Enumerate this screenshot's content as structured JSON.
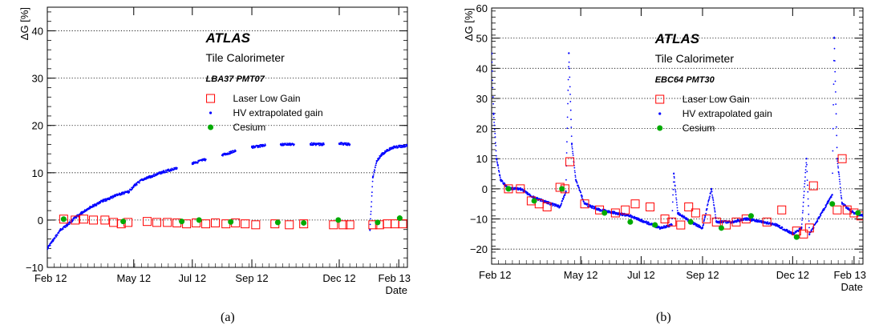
{
  "chart_data": [
    {
      "type": "scatter",
      "panel_caption": "(a)",
      "ylabel": "ΔG [%]",
      "xlabel": "Date",
      "ylim": [
        -10,
        45
      ],
      "yticks": [
        -10,
        0,
        10,
        20,
        30,
        40
      ],
      "ytick_labels": [
        "−10",
        "0",
        "10",
        "20",
        "30",
        "40"
      ],
      "xticks": [
        {
          "label": "Feb 12",
          "date": "2012-02-01"
        },
        {
          "label": "May 12",
          "date": "2012-05-01"
        },
        {
          "label": "Jul 12",
          "date": "2012-07-01"
        },
        {
          "label": "Sep 12",
          "date": "2012-09-01"
        },
        {
          "label": "Dec 12",
          "date": "2012-12-01"
        },
        {
          "label": "Feb 13",
          "date": "2013-02-01"
        }
      ],
      "xlim": [
        "2012-02-01",
        "2013-02-10"
      ],
      "grid": "horizontal dotted",
      "annotations": {
        "experiment": "ATLAS",
        "detector": "Tile Calorimeter",
        "channel": "LBA37 PMT07"
      },
      "legend": {
        "placement": "upper-middle",
        "entries": [
          {
            "label": "Laser Low Gain",
            "marker": "open-square",
            "color": "#ff0000"
          },
          {
            "label": "HV extrapolated gain",
            "marker": "dot",
            "color": "#0000ff"
          },
          {
            "label": "Cesium",
            "marker": "filled-circle",
            "color": "#00aa00"
          }
        ]
      },
      "series": [
        {
          "name": "HV extrapolated gain",
          "points": [
            [
              "2012-02-01",
              -6
            ],
            [
              "2012-02-08",
              -4
            ],
            [
              "2012-02-15",
              -2
            ],
            [
              "2012-02-22",
              -1
            ],
            [
              "2012-03-01",
              0.5
            ],
            [
              "2012-03-08",
              1.5
            ],
            [
              "2012-03-15",
              2.5
            ],
            [
              "2012-03-22",
              3.2
            ],
            [
              "2012-03-29",
              4
            ],
            [
              "2012-04-05",
              4.5
            ],
            [
              "2012-04-12",
              5.2
            ],
            [
              "2012-04-19",
              5.6
            ],
            [
              "2012-04-26",
              6
            ],
            [
              "2012-05-01",
              7.2
            ],
            [
              "2012-05-10",
              8.5
            ],
            [
              "2012-05-20",
              9.3
            ],
            [
              "2012-06-01",
              10.2
            ],
            [
              "2012-06-15",
              11
            ],
            [
              "2012-07-01",
              12
            ],
            [
              "2012-07-15",
              12.8
            ],
            [
              "2012-08-01",
              13.7
            ],
            [
              "2012-08-15",
              14.6
            ],
            [
              "2012-09-01",
              15.4
            ],
            [
              "2012-09-15",
              15.8
            ],
            [
              "2012-10-01",
              16
            ],
            [
              "2012-10-15",
              16
            ],
            [
              "2012-11-01",
              16.1
            ],
            [
              "2012-11-15",
              16
            ],
            [
              "2012-12-01",
              16.2
            ],
            [
              "2012-12-12",
              16
            ],
            [
              "2013-01-02",
              -2
            ],
            [
              "2013-01-05",
              9
            ],
            [
              "2013-01-09",
              12.5
            ],
            [
              "2013-01-14",
              13.8
            ],
            [
              "2013-01-20",
              14.8
            ],
            [
              "2013-01-27",
              15.4
            ],
            [
              "2013-02-05",
              15.6
            ],
            [
              "2013-02-10",
              15.8
            ]
          ]
        },
        {
          "name": "Laser Low Gain",
          "points": [
            [
              "2012-02-18",
              0.2
            ],
            [
              "2012-03-01",
              0
            ],
            [
              "2012-03-10",
              0.2
            ],
            [
              "2012-03-20",
              0
            ],
            [
              "2012-04-01",
              0
            ],
            [
              "2012-04-10",
              -0.5
            ],
            [
              "2012-04-18",
              -0.8
            ],
            [
              "2012-04-25",
              -0.5
            ],
            [
              "2012-05-15",
              -0.3
            ],
            [
              "2012-05-25",
              -0.5
            ],
            [
              "2012-06-05",
              -0.5
            ],
            [
              "2012-06-15",
              -0.6
            ],
            [
              "2012-06-25",
              -0.8
            ],
            [
              "2012-07-05",
              -0.6
            ],
            [
              "2012-07-15",
              -0.8
            ],
            [
              "2012-07-25",
              -0.6
            ],
            [
              "2012-08-05",
              -0.8
            ],
            [
              "2012-08-15",
              -0.6
            ],
            [
              "2012-08-25",
              -0.8
            ],
            [
              "2012-09-05",
              -1
            ],
            [
              "2012-09-25",
              -0.8
            ],
            [
              "2012-10-10",
              -1
            ],
            [
              "2012-10-25",
              -0.8
            ],
            [
              "2012-11-25",
              -1
            ],
            [
              "2012-12-05",
              -1
            ],
            [
              "2012-12-12",
              -1
            ],
            [
              "2013-01-05",
              -1
            ],
            [
              "2013-01-12",
              -1
            ],
            [
              "2013-01-20",
              -0.8
            ],
            [
              "2013-01-28",
              -0.8
            ],
            [
              "2013-02-05",
              -0.8
            ]
          ]
        },
        {
          "name": "Cesium",
          "points": [
            [
              "2012-02-18",
              0.2
            ],
            [
              "2012-04-20",
              -0.3
            ],
            [
              "2012-06-20",
              -0.3
            ],
            [
              "2012-07-08",
              0
            ],
            [
              "2012-08-10",
              -0.4
            ],
            [
              "2012-09-28",
              -0.5
            ],
            [
              "2012-10-25",
              -0.6
            ],
            [
              "2012-11-30",
              0
            ],
            [
              "2013-01-10",
              -0.5
            ],
            [
              "2013-02-02",
              0.4
            ]
          ]
        }
      ]
    },
    {
      "type": "scatter",
      "panel_caption": "(b)",
      "ylabel": "ΔG [%]",
      "xlabel": "Date",
      "ylim": [
        -25,
        60
      ],
      "yticks": [
        -20,
        -10,
        0,
        10,
        20,
        30,
        40,
        50,
        60
      ],
      "ytick_labels": [
        "−20",
        "−10",
        "0",
        "10",
        "20",
        "30",
        "40",
        "50",
        "60"
      ],
      "xticks": [
        {
          "label": "Feb 12",
          "date": "2012-02-01"
        },
        {
          "label": "May 12",
          "date": "2012-05-01"
        },
        {
          "label": "Jul 12",
          "date": "2012-07-01"
        },
        {
          "label": "Sep 12",
          "date": "2012-09-01"
        },
        {
          "label": "Dec 12",
          "date": "2012-12-01"
        },
        {
          "label": "Feb 13",
          "date": "2013-02-01"
        }
      ],
      "xlim": [
        "2012-02-01",
        "2013-02-10"
      ],
      "grid": "horizontal dotted",
      "annotations": {
        "experiment": "ATLAS",
        "detector": "Tile Calorimeter",
        "channel": "EBC64 PMT30"
      },
      "legend": {
        "placement": "upper-middle",
        "entries": [
          {
            "label": "Laser Low Gain",
            "marker": "open-square",
            "color": "#ff0000"
          },
          {
            "label": "HV extrapolated gain",
            "marker": "dot",
            "color": "#0000ff"
          },
          {
            "label": "Cesium",
            "marker": "filled-circle",
            "color": "#00aa00"
          }
        ]
      },
      "series": [
        {
          "name": "HV extrapolated gain",
          "points": [
            [
              "2012-02-01",
              45
            ],
            [
              "2012-02-03",
              25
            ],
            [
              "2012-02-06",
              10
            ],
            [
              "2012-02-10",
              3
            ],
            [
              "2012-02-18",
              0
            ],
            [
              "2012-03-01",
              0
            ],
            [
              "2012-03-15",
              -3
            ],
            [
              "2012-04-01",
              -5
            ],
            [
              "2012-04-10",
              -6
            ],
            [
              "2012-04-16",
              -1
            ],
            [
              "2012-04-19",
              45
            ],
            [
              "2012-04-22",
              15
            ],
            [
              "2012-04-26",
              3
            ],
            [
              "2012-05-05",
              -5
            ],
            [
              "2012-05-20",
              -7
            ],
            [
              "2012-06-05",
              -8
            ],
            [
              "2012-06-20",
              -9
            ],
            [
              "2012-07-05",
              -11
            ],
            [
              "2012-07-20",
              -13
            ],
            [
              "2012-08-01",
              -12
            ],
            [
              "2012-08-03",
              5
            ],
            [
              "2012-08-07",
              -8
            ],
            [
              "2012-08-20",
              -11
            ],
            [
              "2012-09-01",
              -13
            ],
            [
              "2012-09-10",
              0
            ],
            [
              "2012-09-15",
              -11
            ],
            [
              "2012-10-01",
              -11
            ],
            [
              "2012-10-15",
              -10
            ],
            [
              "2012-11-01",
              -11
            ],
            [
              "2012-11-15",
              -12
            ],
            [
              "2012-12-01",
              -15
            ],
            [
              "2012-12-10",
              -13
            ],
            [
              "2012-12-15",
              10
            ],
            [
              "2012-12-18",
              -15
            ],
            [
              "2013-01-10",
              -2
            ],
            [
              "2013-01-12",
              50
            ],
            [
              "2013-01-15",
              10
            ],
            [
              "2013-01-20",
              -5
            ],
            [
              "2013-02-01",
              -8
            ],
            [
              "2013-02-10",
              -9
            ]
          ]
        },
        {
          "name": "Laser Low Gain",
          "points": [
            [
              "2012-02-18",
              0
            ],
            [
              "2012-03-01",
              0
            ],
            [
              "2012-03-12",
              -4
            ],
            [
              "2012-03-20",
              -5
            ],
            [
              "2012-03-28",
              -6
            ],
            [
              "2012-04-10",
              0.5
            ],
            [
              "2012-04-15",
              0
            ],
            [
              "2012-04-20",
              9
            ],
            [
              "2012-05-05",
              -5
            ],
            [
              "2012-05-20",
              -7
            ],
            [
              "2012-06-05",
              -8
            ],
            [
              "2012-06-15",
              -7
            ],
            [
              "2012-06-25",
              -5
            ],
            [
              "2012-07-10",
              -6
            ],
            [
              "2012-07-25",
              -10
            ],
            [
              "2012-08-01",
              -11
            ],
            [
              "2012-08-10",
              -12
            ],
            [
              "2012-08-18",
              -6
            ],
            [
              "2012-08-25",
              -8
            ],
            [
              "2012-09-05",
              -10
            ],
            [
              "2012-09-15",
              -11
            ],
            [
              "2012-09-25",
              -12
            ],
            [
              "2012-10-05",
              -11
            ],
            [
              "2012-10-15",
              -10
            ],
            [
              "2012-11-05",
              -11
            ],
            [
              "2012-11-20",
              -7
            ],
            [
              "2012-12-05",
              -14
            ],
            [
              "2012-12-12",
              -15
            ],
            [
              "2012-12-18",
              -13
            ],
            [
              "2012-12-22",
              1
            ],
            [
              "2013-01-15",
              -7
            ],
            [
              "2013-01-20",
              10
            ],
            [
              "2013-01-25",
              -7
            ],
            [
              "2013-02-01",
              -8
            ],
            [
              "2013-02-08",
              -9
            ]
          ]
        },
        {
          "name": "Cesium",
          "points": [
            [
              "2012-02-18",
              0
            ],
            [
              "2012-03-15",
              -4
            ],
            [
              "2012-04-12",
              0
            ],
            [
              "2012-05-25",
              -8
            ],
            [
              "2012-06-20",
              -11
            ],
            [
              "2012-07-15",
              -12
            ],
            [
              "2012-08-20",
              -11
            ],
            [
              "2012-09-20",
              -13
            ],
            [
              "2012-10-20",
              -9
            ],
            [
              "2012-12-05",
              -16
            ],
            [
              "2013-01-10",
              -5
            ],
            [
              "2013-02-05",
              -8
            ]
          ]
        }
      ]
    }
  ]
}
